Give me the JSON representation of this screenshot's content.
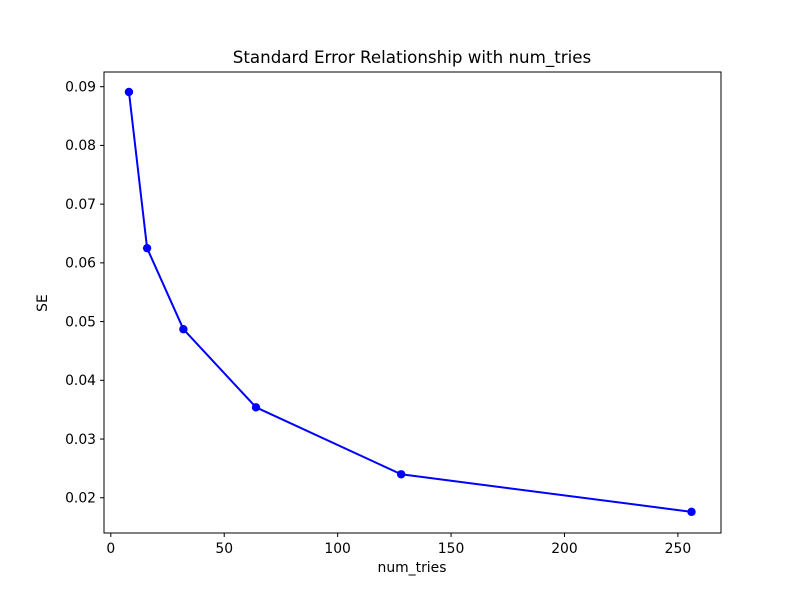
{
  "figure": {
    "background": "#ffffff"
  },
  "chart_data": {
    "type": "line",
    "title": "Standard Error Relationship with num_tries",
    "xlabel": "num_tries",
    "ylabel": "SE",
    "x": [
      8,
      16,
      32,
      64,
      128,
      256
    ],
    "y": [
      0.0891,
      0.0625,
      0.0487,
      0.0354,
      0.024,
      0.0176
    ],
    "series": [
      {
        "name": "SE",
        "x": [
          8,
          16,
          32,
          64,
          128,
          256
        ],
        "values": [
          0.0891,
          0.0625,
          0.0487,
          0.0354,
          0.024,
          0.0176
        ]
      }
    ],
    "xlim": [
      -3,
      269
    ],
    "ylim": [
      0.014,
      0.0925
    ],
    "xticks": [
      0,
      50,
      100,
      150,
      200,
      250
    ],
    "xtick_labels": [
      "0",
      "50",
      "100",
      "150",
      "200",
      "250"
    ],
    "yticks": [
      0.02,
      0.03,
      0.04,
      0.05,
      0.06,
      0.07,
      0.08,
      0.09
    ],
    "ytick_labels": [
      "0.02",
      "0.03",
      "0.04",
      "0.05",
      "0.06",
      "0.07",
      "0.08",
      "0.09"
    ],
    "grid": false,
    "legend": null,
    "line_color": "#0000ff",
    "marker": "o",
    "marker_radius": 4.2,
    "line_width": 2,
    "axis_color": "#000000",
    "text_color": "#000000",
    "background_color": "#ffffff"
  }
}
